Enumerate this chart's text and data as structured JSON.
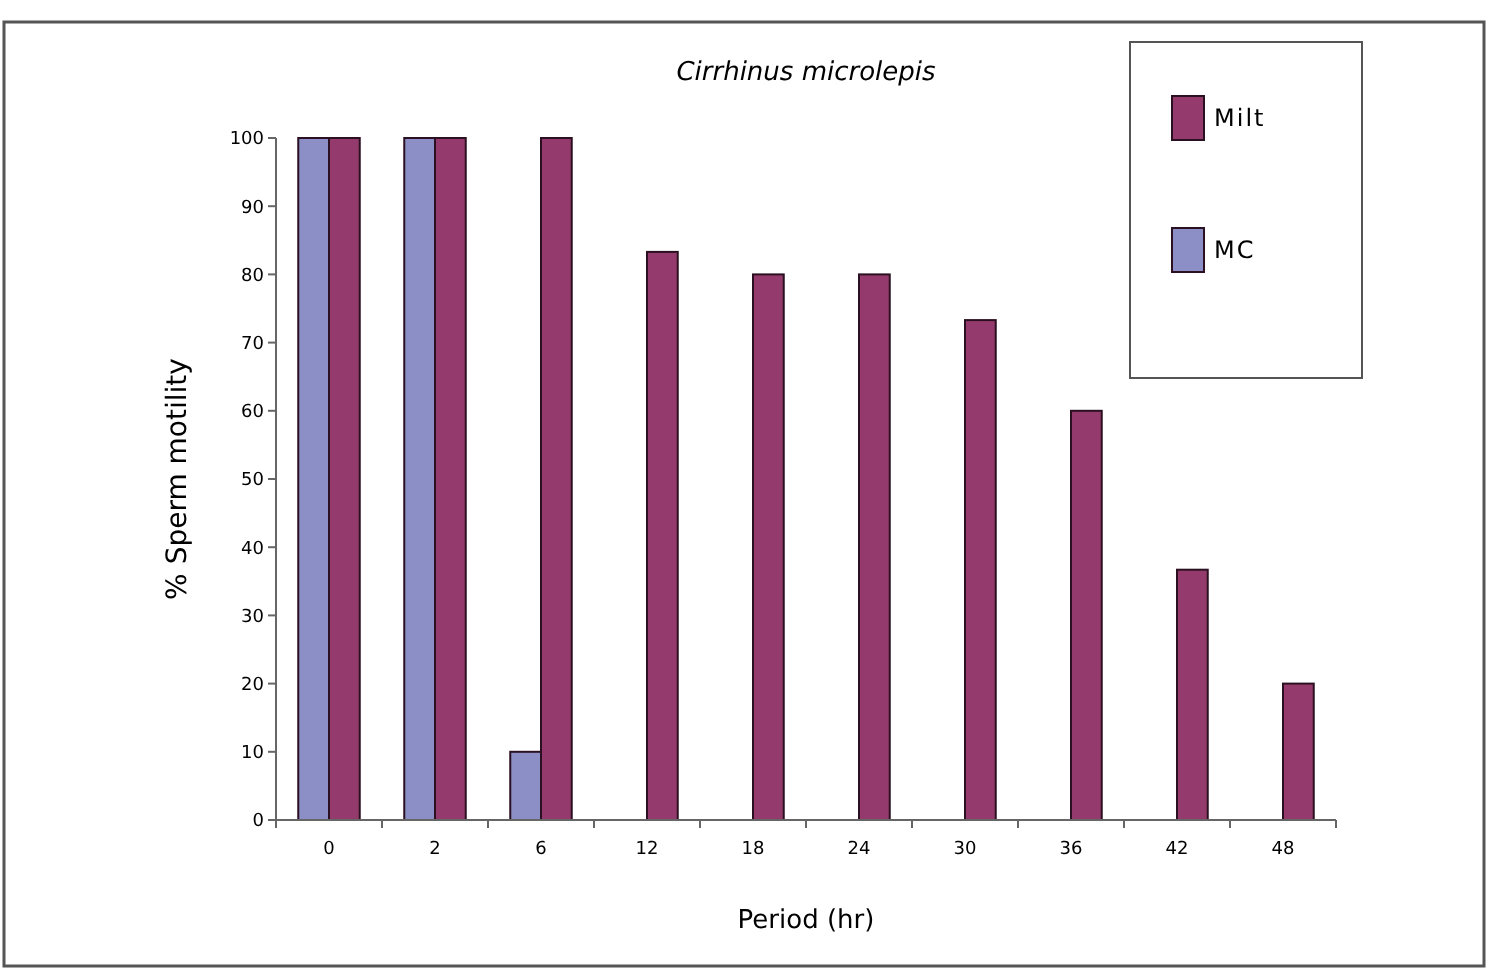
{
  "chart_data": {
    "type": "bar",
    "title": "Cirrhinus microlepis",
    "xlabel": "Period (hr)",
    "ylabel": "% Sperm motility",
    "categories": [
      "0",
      "2",
      "6",
      "12",
      "18",
      "24",
      "30",
      "36",
      "42",
      "48"
    ],
    "series": [
      {
        "name": "MC",
        "color": "#8b8fc6",
        "values": [
          100,
          100,
          10,
          null,
          null,
          null,
          null,
          null,
          null,
          null
        ]
      },
      {
        "name": "Milt",
        "color": "#953a6c",
        "values": [
          100,
          100,
          100,
          83.3,
          80,
          80,
          73.3,
          60,
          36.7,
          20
        ]
      }
    ],
    "ylim": [
      0,
      100
    ],
    "yticks": [
      0,
      10,
      20,
      30,
      40,
      50,
      60,
      70,
      80,
      90,
      100
    ],
    "grid": false,
    "legend": "top right"
  }
}
